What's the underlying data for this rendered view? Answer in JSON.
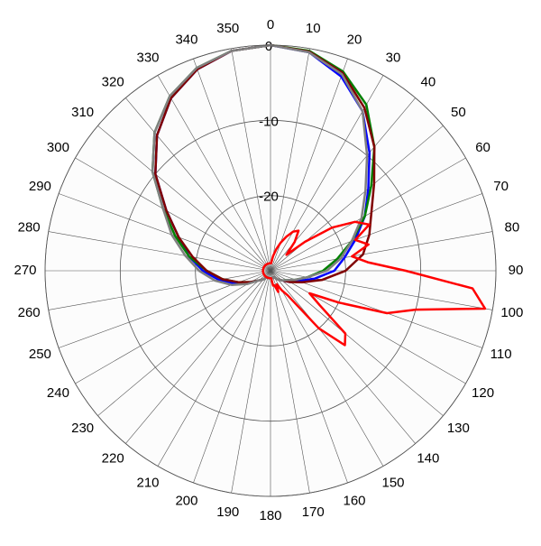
{
  "chart_data": {
    "type": "polar",
    "rlim": [
      -30,
      0
    ],
    "rticks": [
      -20,
      -10,
      0
    ],
    "thetaticks": [
      0,
      10,
      20,
      30,
      40,
      50,
      60,
      70,
      80,
      90,
      100,
      110,
      120,
      130,
      140,
      150,
      160,
      170,
      180,
      190,
      200,
      210,
      220,
      230,
      240,
      250,
      260,
      270,
      280,
      290,
      300,
      310,
      320,
      330,
      340,
      350
    ],
    "theta": [
      0,
      10,
      20,
      30,
      40,
      50,
      60,
      70,
      80,
      90,
      100,
      110,
      120,
      130,
      140,
      150,
      160,
      170,
      180,
      190,
      200,
      210,
      220,
      230,
      240,
      250,
      260,
      270,
      280,
      290,
      300,
      310,
      320,
      330,
      340,
      350
    ],
    "grid": true,
    "series": [
      {
        "color": "#0000ff",
        "values": [
          0,
          -0.5,
          -2.5,
          -5.5,
          -9.5,
          -13,
          -15.5,
          -18,
          -20,
          -21.5,
          -24,
          -26,
          -27,
          -28,
          -28.5,
          -29,
          -29,
          -29,
          -29,
          -29,
          -29,
          -29,
          -28.5,
          -28,
          -27,
          -25,
          -23,
          -21,
          -19,
          -17,
          -14,
          -10,
          -6.5,
          -3.5,
          -1.5,
          -0.3
        ]
      },
      {
        "color": "#008000",
        "values": [
          0,
          -0.3,
          -1.8,
          -4.5,
          -8.5,
          -12.5,
          -15.5,
          -18.5,
          -21,
          -23,
          -25,
          -26.5,
          -27.5,
          -28,
          -28.5,
          -29,
          -29,
          -29,
          -29,
          -29,
          -29,
          -29,
          -28.5,
          -28,
          -27,
          -25.5,
          -23.5,
          -21.5,
          -19,
          -16.5,
          -13.5,
          -9.5,
          -6,
          -3.2,
          -1.3,
          -0.3
        ]
      },
      {
        "color": "#800000",
        "values": [
          0,
          -0.4,
          -2,
          -5,
          -8.5,
          -12,
          -14.5,
          -16,
          -17.5,
          -20,
          -23,
          -25.5,
          -27,
          -28,
          -28.5,
          -29,
          -29,
          -29,
          -29,
          -29,
          -29,
          -29,
          -28.5,
          -28,
          -27,
          -25.5,
          -23.5,
          -21.5,
          -19.5,
          -17,
          -14,
          -10,
          -6.5,
          -3.5,
          -1.5,
          -0.3
        ]
      },
      {
        "color": "#808080",
        "values": [
          0,
          -0.5,
          -2.2,
          -5.5,
          -10,
          -13.5,
          -16,
          -18.5,
          -20.5,
          -22.5,
          -25,
          -26.5,
          -27.5,
          -28,
          -28.5,
          -29,
          -29,
          -29,
          -29,
          -29,
          -29,
          -29,
          -28.5,
          -28,
          -26.5,
          -24.5,
          -22.5,
          -20.5,
          -18.5,
          -16,
          -13.5,
          -9.5,
          -6,
          -3.2,
          -1.3,
          -0.3
        ]
      },
      {
        "color": "#ff0000",
        "theta": [
          0,
          5,
          10,
          15,
          20,
          25,
          30,
          35,
          40,
          45,
          50,
          55,
          60,
          65,
          70,
          75,
          80,
          85,
          90,
          95,
          100,
          105,
          110,
          115,
          120,
          125,
          130,
          135,
          140,
          145,
          150,
          155,
          160,
          165,
          170,
          175,
          180,
          185,
          190,
          195,
          200,
          205,
          210,
          215,
          220,
          225,
          230,
          235,
          240,
          245,
          250,
          255,
          260,
          265,
          270,
          275,
          280,
          285,
          290,
          295,
          300,
          305,
          310,
          315,
          320,
          325,
          330,
          335,
          340,
          345,
          350,
          355
        ],
        "values": [
          -29,
          -29,
          -28,
          -27,
          -26,
          -25,
          -24,
          -23.5,
          -25,
          -27,
          -24,
          -20,
          -17,
          -15.5,
          -18,
          -16.5,
          -19,
          -17,
          -12,
          -3,
          -1,
          -10,
          -13.5,
          -20,
          -24,
          -22,
          -17,
          -16,
          -20,
          -26,
          -27,
          -28,
          -27,
          -28,
          -28,
          -29,
          -29,
          -29,
          -29,
          -29,
          -29,
          -29,
          -29,
          -29,
          -29,
          -29,
          -29,
          -29,
          -29,
          -29,
          -29,
          -29,
          -29,
          -29,
          -29,
          -29,
          -29,
          -29,
          -29,
          -29,
          -29,
          -29,
          -29,
          -29,
          -29,
          -29,
          -29,
          -29,
          -29,
          -29,
          -29,
          -29
        ]
      }
    ]
  }
}
